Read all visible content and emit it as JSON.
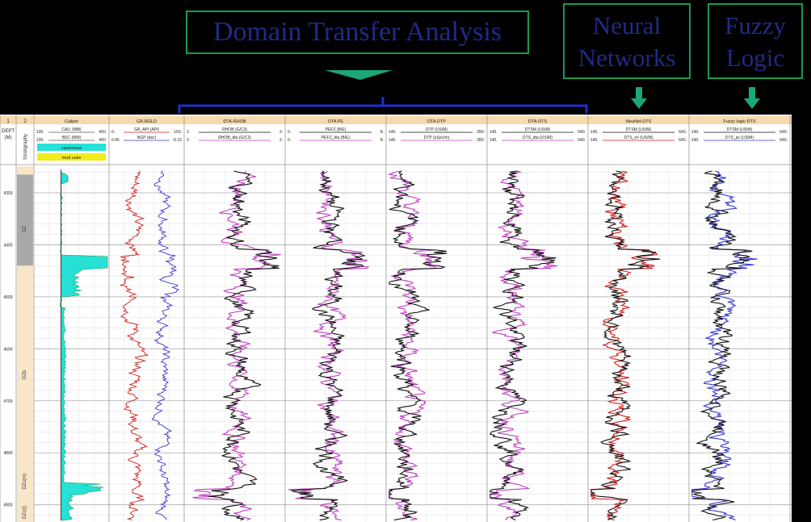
{
  "headings": {
    "dta": "Domain Transfer Analysis",
    "nn": [
      "Neural",
      "Networks"
    ],
    "fl": [
      "Fuzzy",
      "Logic"
    ]
  },
  "colors": {
    "heading_text": "#1f2a88",
    "box_border": "#1a9a52",
    "arrow": "#1aa878",
    "bracket": "#1e2ed0",
    "track_header": "#f6d9ac",
    "strat_zone": "#f9e6c9",
    "strat_zone_top": "#a9a9a9",
    "caliper_fill": "#27e0d6"
  },
  "log": {
    "track_numbers": [
      "1",
      "2"
    ],
    "depth_header": [
      "DEPT",
      "(M)"
    ],
    "strat_header": "Stratigraphy",
    "depth_ticks": [
      "4300",
      "4400",
      "4500",
      "4600",
      "4700",
      "4800",
      "4900"
    ],
    "strat_zones": [
      "DZ",
      "DZb",
      "DZc(m)",
      "DZc(l)"
    ],
    "tracks": [
      {
        "title": "Caliper",
        "curves": [
          {
            "name": "CALI (MM)",
            "left": "100.",
            "right": "400.",
            "color": "#555555"
          },
          {
            "name": "BSC (MM)",
            "left": "100.",
            "right": "400.",
            "color": "#555555"
          }
        ],
        "legend": [
          {
            "label": "cavernous",
            "color": "#27e0d6"
          },
          {
            "label": "mud cake",
            "color": "#f2ec1a"
          }
        ]
      },
      {
        "title": "GR,NGLD",
        "curves": [
          {
            "name": "GR_API (API)",
            "left": "0.",
            "right": "150.",
            "color": "#d21f1f"
          },
          {
            "name": "NGP (dec)",
            "left": "0.45",
            "right": "-0.15",
            "color": "#3a3ad0"
          }
        ]
      },
      {
        "title": "DTA-RHOB",
        "curves": [
          {
            "name": "RHOB (G/C3)",
            "left": "2.",
            "right": "3.",
            "color": "#111111"
          },
          {
            "name": "RHOB_dta (G/C3)",
            "left": "2.",
            "right": "3.",
            "color": "#c040c0"
          }
        ]
      },
      {
        "title": "DTA PE",
        "curves": [
          {
            "name": "PEFZ (B/E)",
            "left": "0.",
            "right": "8.",
            "color": "#111111"
          },
          {
            "name": "PEFZ_dta (B/E)",
            "left": "0.",
            "right": "8.",
            "color": "#c040c0"
          }
        ]
      },
      {
        "title": "DTA DTP",
        "curves": [
          {
            "name": "DTP (US/M)",
            "left": "140.",
            "right": "280.",
            "color": "#111111"
          },
          {
            "name": "DTP (uSec/m)",
            "left": "140.",
            "right": "280.",
            "color": "#c040c0"
          }
        ]
      },
      {
        "title": "DTA-DTS",
        "curves": [
          {
            "name": "DTSM (US/M)",
            "left": "140.",
            "right": "640.",
            "color": "#111111"
          },
          {
            "name": "DTS_dta (US/M)",
            "left": "140.",
            "right": "640.",
            "color": "#c040c0"
          }
        ]
      },
      {
        "title": "NeuNet-DTS",
        "curves": [
          {
            "name": "DTSM (US/M)",
            "left": "140.",
            "right": "640.",
            "color": "#111111"
          },
          {
            "name": "DTS_nn (US/M)",
            "left": "140.",
            "right": "640.",
            "color": "#d21f1f"
          }
        ]
      },
      {
        "title": "Fuzzy logic-DTS",
        "curves": [
          {
            "name": "DTSM (US/M)",
            "left": "140.",
            "right": "640.",
            "color": "#111111"
          },
          {
            "name": "DTS_av (US/M)",
            "left": "140.",
            "right": "640.",
            "color": "#3a3ad0"
          }
        ]
      }
    ]
  }
}
